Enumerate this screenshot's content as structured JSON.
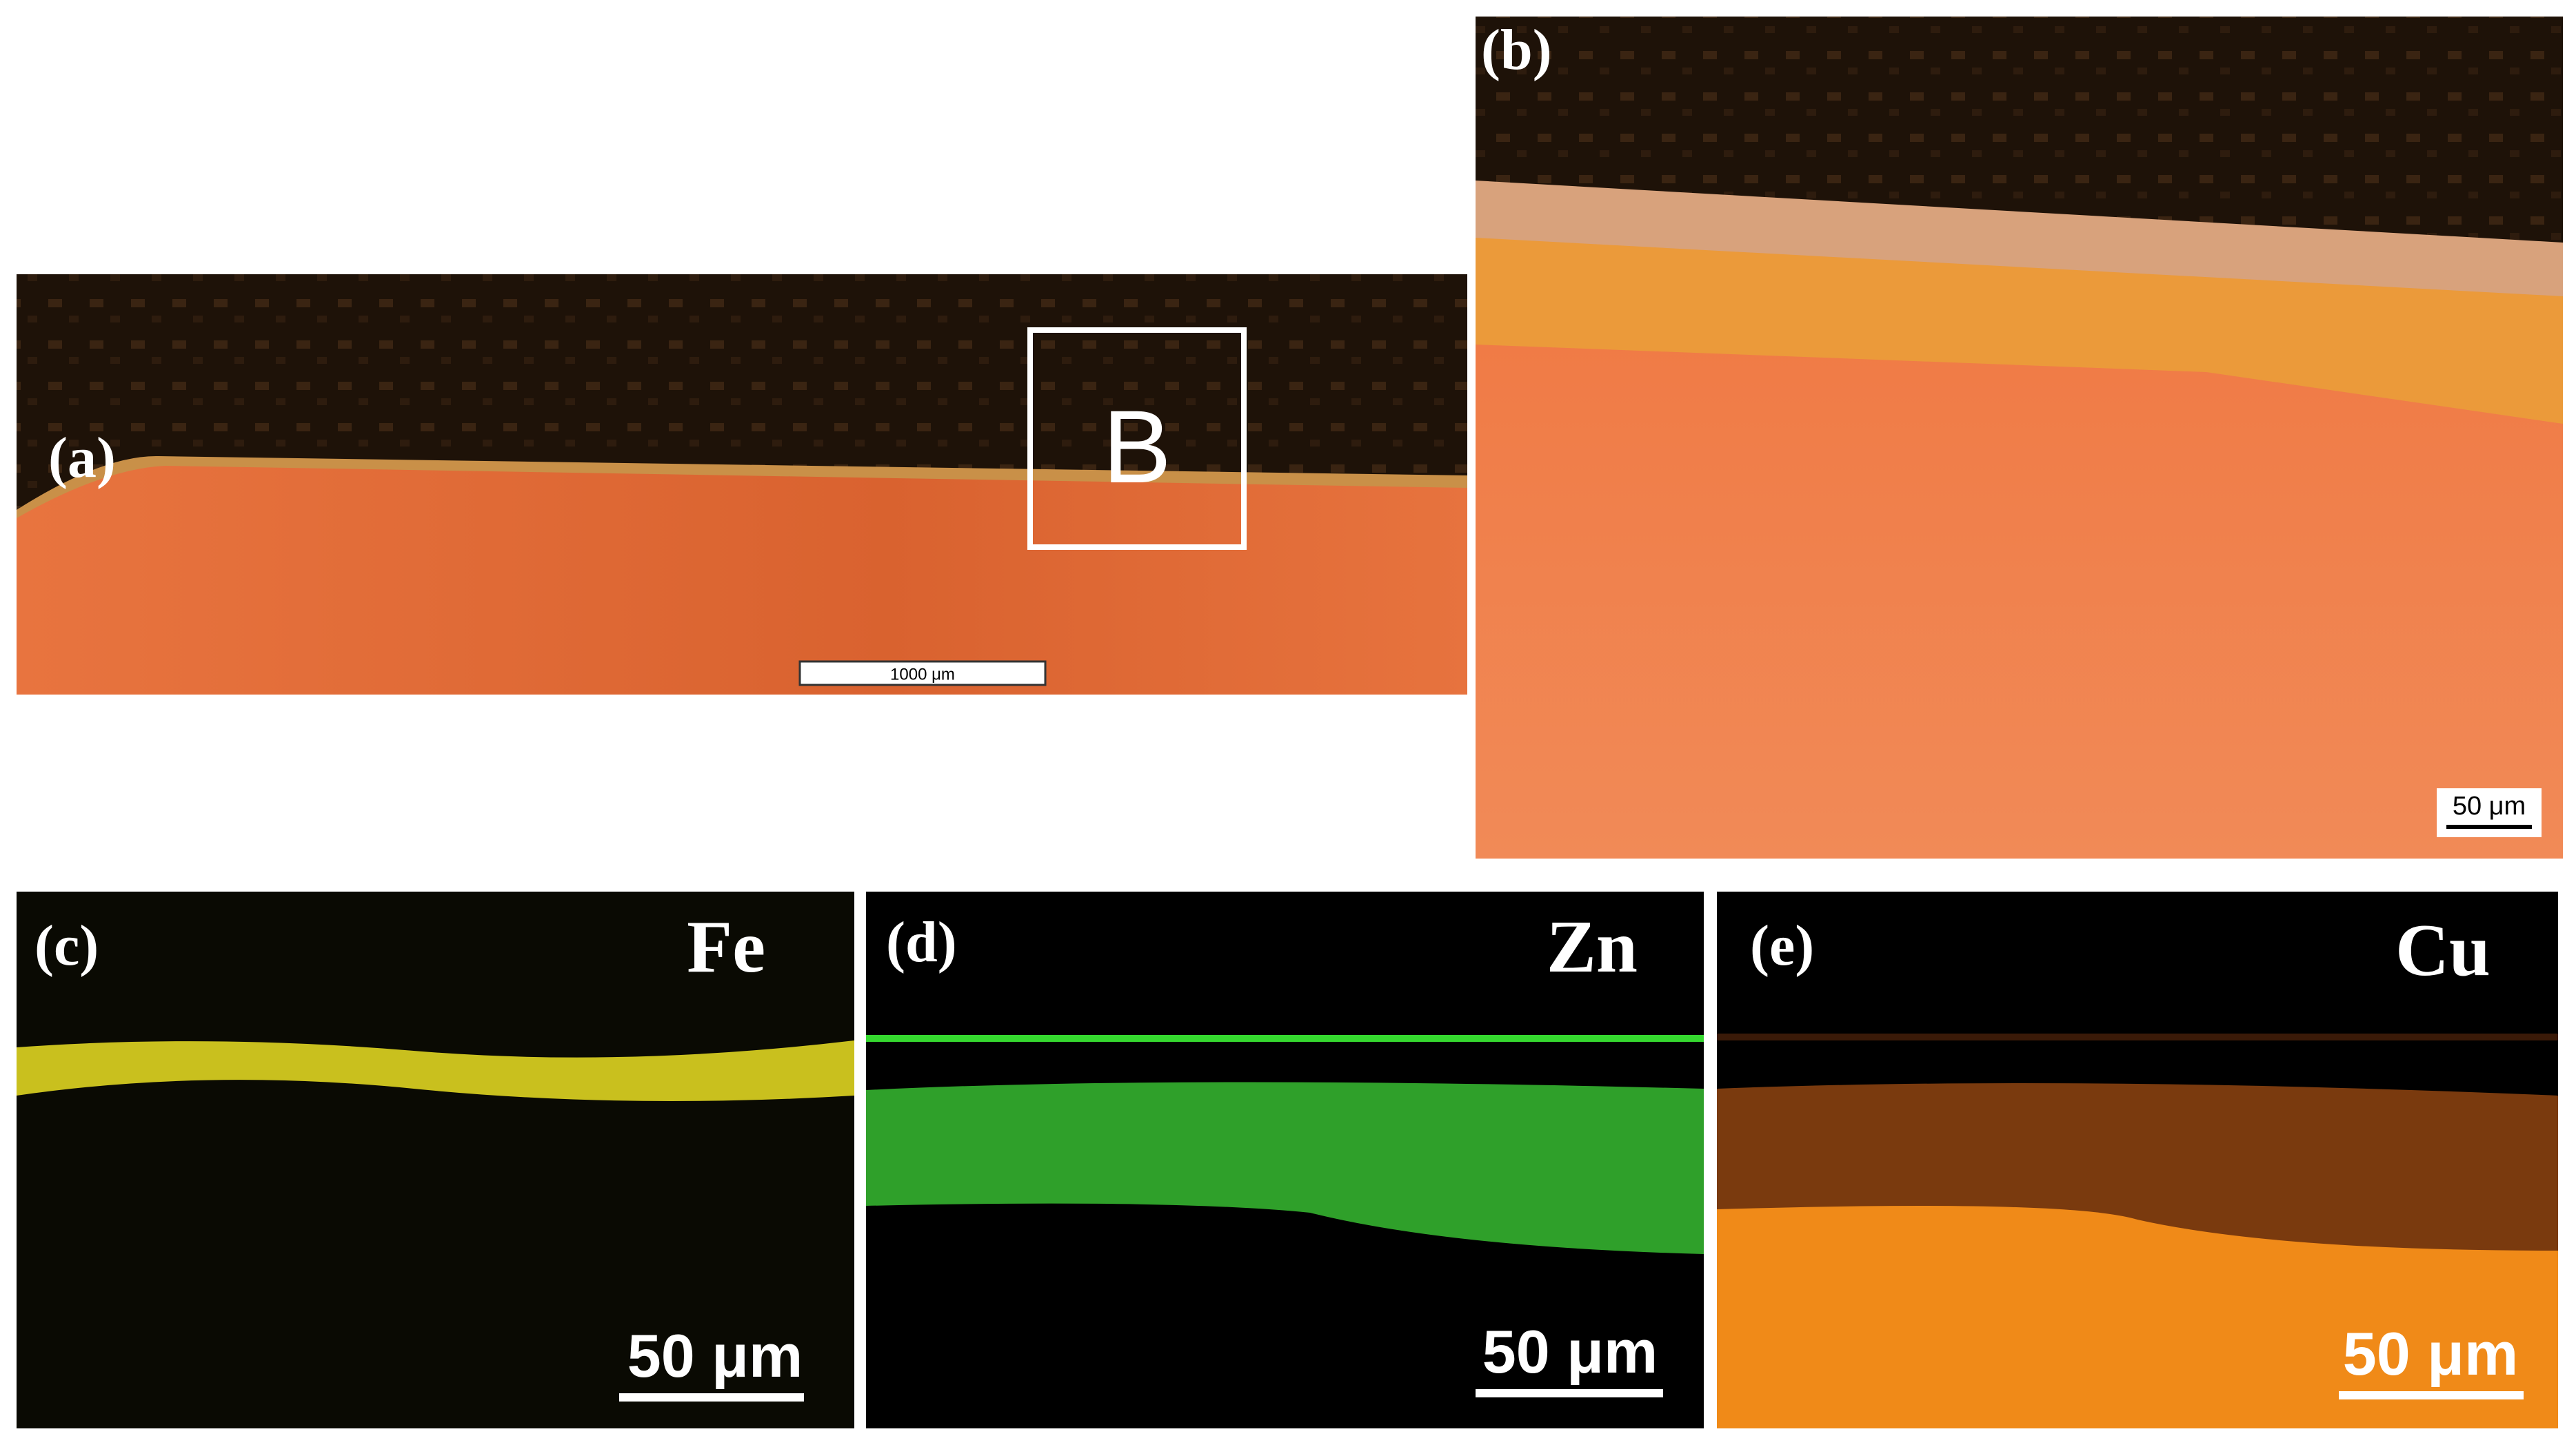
{
  "panels": [
    {
      "label": "(a)",
      "box_label": "B",
      "scale_bar": "1000 μm"
    },
    {
      "label": "(b)",
      "scale_bar": "50 μm"
    },
    {
      "label": "(c)",
      "element": "Fe",
      "scale_bar": "50 μm"
    },
    {
      "label": "(d)",
      "element": "Zn",
      "scale_bar": "50 μm"
    },
    {
      "label": "(e)",
      "element": "Cu",
      "scale_bar": "50 μm"
    }
  ]
}
